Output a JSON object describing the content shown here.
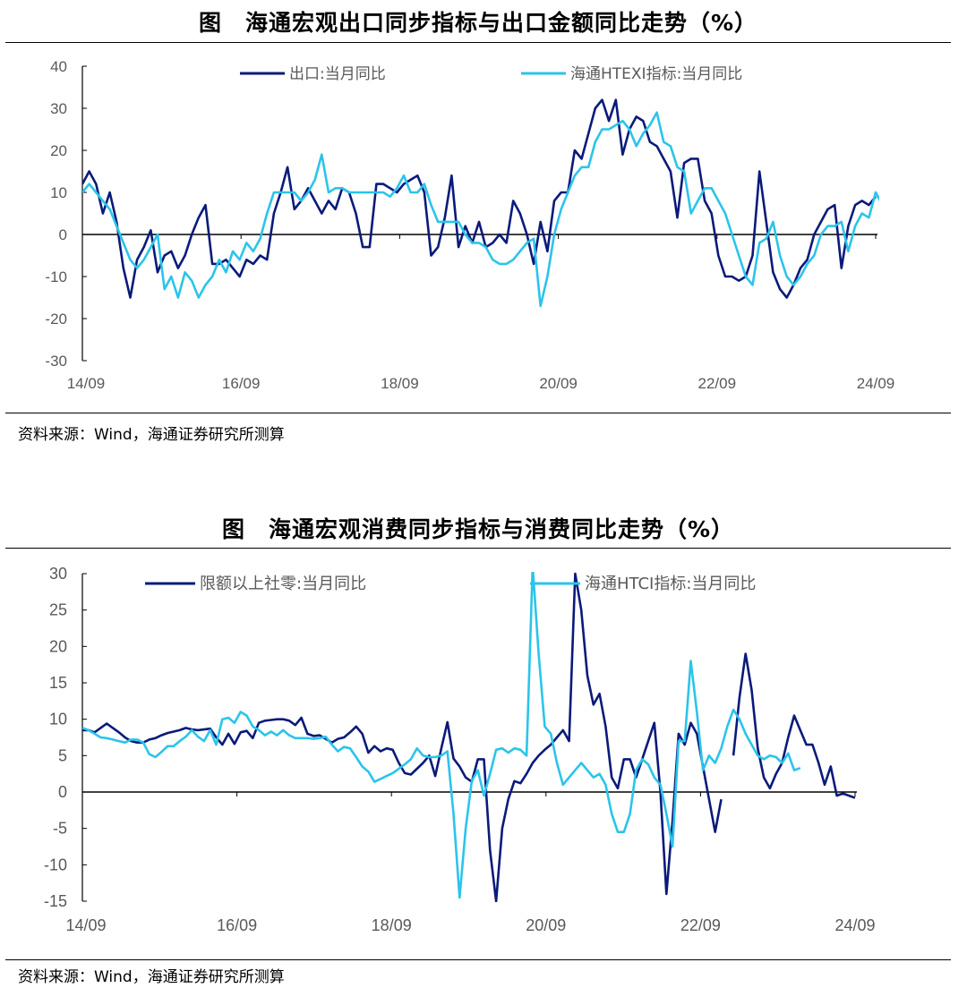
{
  "charts": [
    {
      "title": "图　海通宏观出口同步指标与出口金额同比走势（%）",
      "source": "资料来源：Wind，海通证券研究所测算"
    },
    {
      "title": "图　海通宏观消费同步指标与消费同比走势（%）",
      "source": "资料来源：Wind，海通证券研究所测算"
    }
  ],
  "chart_data": [
    {
      "type": "line",
      "xticks": [
        "14/09",
        "16/09",
        "18/09",
        "20/09",
        "22/09",
        "24/09"
      ],
      "ylim": [
        -30,
        40
      ],
      "yticks": [
        -30,
        -20,
        -10,
        0,
        10,
        20,
        30,
        40
      ],
      "legend_position": "top",
      "series": [
        {
          "name": "出口:当月同比",
          "color": "#0a1a7a",
          "values": [
            12,
            15,
            12,
            5,
            10,
            3,
            -8,
            -15,
            -6,
            -3,
            1,
            -9,
            -5,
            -4,
            -8,
            -5,
            0,
            4,
            7,
            -7,
            -7,
            -6,
            -8,
            -10,
            -6,
            -7,
            -5,
            -6,
            5,
            10,
            16,
            6,
            8,
            11,
            8,
            5,
            8,
            6,
            11,
            10,
            5,
            -3,
            -3,
            12,
            12,
            11,
            10,
            12,
            13,
            14,
            10,
            -5,
            -3,
            4,
            14,
            -3,
            2,
            -2,
            3,
            -3,
            -2,
            0,
            -2,
            8,
            5,
            0,
            -7,
            3,
            -4,
            8,
            10,
            10,
            20,
            18,
            24,
            30,
            32,
            27,
            32,
            19,
            25,
            28,
            27,
            22,
            21,
            18,
            15,
            4,
            17,
            18,
            18,
            8,
            5,
            -5,
            -10,
            -10,
            -11,
            -10,
            -5,
            15,
            3,
            -9,
            -13,
            -15,
            -12,
            -8,
            -6,
            0,
            3,
            6,
            7,
            -8,
            2,
            7,
            8,
            7,
            9
          ]
        },
        {
          "name": "海通HTEXI指标:当月同比",
          "color": "#2bc4ea",
          "values": [
            10,
            12,
            10,
            8,
            6,
            2,
            -2,
            -6,
            -8,
            -6,
            -3,
            0,
            -13,
            -10,
            -15,
            -9,
            -11,
            -15,
            -12,
            -10,
            -6,
            -9,
            -4,
            -6,
            -2,
            -4,
            -1,
            5,
            10,
            10,
            10,
            10,
            8,
            10,
            13,
            19,
            10,
            11,
            11,
            10,
            10,
            10,
            10,
            10,
            10,
            9,
            11,
            14,
            10,
            10,
            12,
            7,
            3,
            3,
            3,
            3,
            0,
            -2,
            -2,
            -3,
            -6,
            -7,
            -7,
            -6,
            -4,
            -2,
            -1,
            -17,
            -10,
            0,
            6,
            10,
            14,
            16,
            16,
            22,
            25,
            25,
            26,
            27,
            25,
            21,
            24,
            26,
            29,
            22,
            21,
            16,
            15,
            5,
            8,
            11,
            11,
            8,
            5,
            0,
            -5,
            -10,
            -12,
            -2,
            -1,
            3,
            -5,
            -10,
            -12,
            -10,
            -7,
            -5,
            0,
            2,
            2,
            3,
            -4,
            2,
            5,
            4,
            10,
            7,
            7
          ]
        }
      ]
    },
    {
      "type": "line",
      "xticks": [
        "14/09",
        "16/09",
        "18/09",
        "20/09",
        "22/09",
        "24/09"
      ],
      "ylim": [
        -15,
        30
      ],
      "yticks": [
        -15,
        -10,
        -5,
        0,
        5,
        10,
        15,
        20,
        25,
        30
      ],
      "legend_position": "top",
      "series": [
        {
          "name": "限额以上社零:当月同比",
          "color": "#0a1a7a",
          "values": [
            8.5,
            8.5,
            8.2,
            8.8,
            9.4,
            8.8,
            8.2,
            7.5,
            7.0,
            6.8,
            6.8,
            7.2,
            7.4,
            7.8,
            8.1,
            8.3,
            8.5,
            8.8,
            8.6,
            8.5,
            8.6,
            8.7,
            7.5,
            6.5,
            8.0,
            6.6,
            8.2,
            8.4,
            7.4,
            9.5,
            9.8,
            9.9,
            10.0,
            10.0,
            9.8,
            9.2,
            10.2,
            8.0,
            7.7,
            7.8,
            7.3,
            6.8,
            7.3,
            7.5,
            8.2,
            9.0,
            8.0,
            5.4,
            6.3,
            5.6,
            6.0,
            5.8,
            4.0,
            2.6,
            2.4,
            3.2,
            4.0,
            5.0,
            2.2,
            6.0,
            9.6,
            4.6,
            3.5,
            2.0,
            1.4,
            4.5,
            4.5,
            -8,
            -15.8,
            -5,
            -1,
            1.5,
            1.2,
            2.5,
            4.0,
            5.0,
            5.8,
            6.5,
            7.5,
            8.5,
            7.0,
            30,
            25,
            16,
            12,
            13.5,
            9,
            2,
            0.5,
            4.5,
            4.5,
            2,
            4.5,
            7,
            9.5,
            0,
            -14,
            -4,
            8,
            6.5,
            9.5,
            8,
            3.5,
            -1,
            -5.5,
            -1,
            null,
            5,
            13,
            19,
            14,
            6,
            2,
            0.5,
            2.5,
            4,
            7.5,
            10.5,
            8.5,
            6.5,
            6.5,
            4,
            1,
            3.5,
            -0.5,
            -0.2,
            -0.5,
            -0.8
          ]
        },
        {
          "name": "海通HTCI指标:当月同比",
          "color": "#2bc4ea",
          "values": [
            8.8,
            8.5,
            8.0,
            7.5,
            7.4,
            7.2,
            7.0,
            6.8,
            7.2,
            7.2,
            6.8,
            5.2,
            4.8,
            5.5,
            6.3,
            6.3,
            7.0,
            7.6,
            8.5,
            7.6,
            7.0,
            8.5,
            6.5,
            10.0,
            10.2,
            9.5,
            11.0,
            10.5,
            9.0,
            8.5,
            7.8,
            8.3,
            7.8,
            8.5,
            7.8,
            7.4,
            7.4,
            7.4,
            7.3,
            7.4,
            7.6,
            6.5,
            5.6,
            6.2,
            6.0,
            4.8,
            3.5,
            2.8,
            1.4,
            1.8,
            2.2,
            2.6,
            3.2,
            3.8,
            4.5,
            6.0,
            5.0,
            4.8,
            4.8,
            5.0,
            5.6,
            -3,
            -14.5,
            -5,
            1.5,
            3,
            -0.5,
            2.5,
            5.8,
            6.0,
            5.4,
            6.0,
            5.8,
            5,
            31,
            19,
            9,
            8,
            4,
            1,
            2,
            3,
            4,
            3,
            2,
            2.5,
            1,
            -3,
            -5.5,
            -5.5,
            -3,
            3,
            4.5,
            3.8,
            2,
            1,
            -3,
            -7.5,
            7,
            7,
            18,
            11,
            3,
            5,
            4,
            6,
            9,
            11.3,
            10,
            8,
            6.5,
            5,
            4.5,
            5,
            4.8,
            4,
            5.3,
            3,
            3.3
          ]
        }
      ]
    }
  ]
}
